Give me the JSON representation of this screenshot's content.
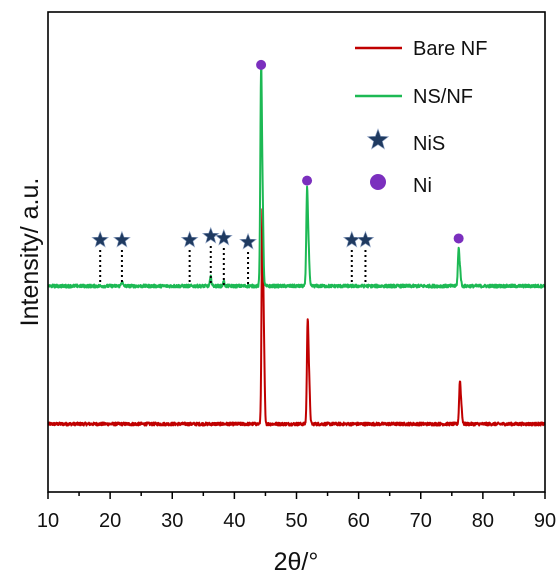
{
  "chart_data": {
    "type": "line",
    "xlabel": "2θ/°",
    "ylabel": "Intensity/ a.u.",
    "xlim": [
      10,
      90
    ],
    "x_ticks": [
      10,
      20,
      30,
      40,
      50,
      60,
      70,
      80,
      90
    ],
    "x_tick_labels": [
      "10",
      "20",
      "30",
      "40",
      "50",
      "60",
      "70",
      "80",
      "90"
    ],
    "y_ticks_shown": false,
    "legend_position": "top-right",
    "series": [
      {
        "name": "Bare NF",
        "color": "#c00000",
        "baseline": 0.0,
        "peaks": [
          {
            "x": 44.5,
            "height": 2.3
          },
          {
            "x": 51.8,
            "height": 1.13
          },
          {
            "x": 76.3,
            "height": 0.46
          }
        ]
      },
      {
        "name": "NS/NF",
        "color": "#1db954",
        "baseline": 1.55,
        "peaks": [
          {
            "x": 44.3,
            "height": 2.35
          },
          {
            "x": 51.7,
            "height": 1.05
          },
          {
            "x": 76.1,
            "height": 0.4
          },
          {
            "x": 36.2,
            "height": 0.1
          },
          {
            "x": 21.9,
            "height": 0.05
          },
          {
            "x": 38.3,
            "height": 0.05
          }
        ]
      }
    ],
    "markers": [
      {
        "symbol": "NiS",
        "series": "NS/NF",
        "x": [
          18.4,
          21.9,
          32.8,
          36.2,
          38.3,
          42.2,
          58.9,
          61.1
        ]
      },
      {
        "symbol": "Ni",
        "series": "NS/NF",
        "x": [
          44.3,
          51.7,
          76.1
        ]
      }
    ],
    "legend": [
      {
        "label": "Bare NF",
        "kind": "line",
        "color": "#c00000"
      },
      {
        "label": "NS/NF",
        "kind": "line",
        "color": "#1db954"
      },
      {
        "label": "NiS",
        "kind": "star",
        "color": "#1f3a60"
      },
      {
        "label": "Ni",
        "kind": "dot",
        "color": "#7b2fbe"
      }
    ]
  }
}
